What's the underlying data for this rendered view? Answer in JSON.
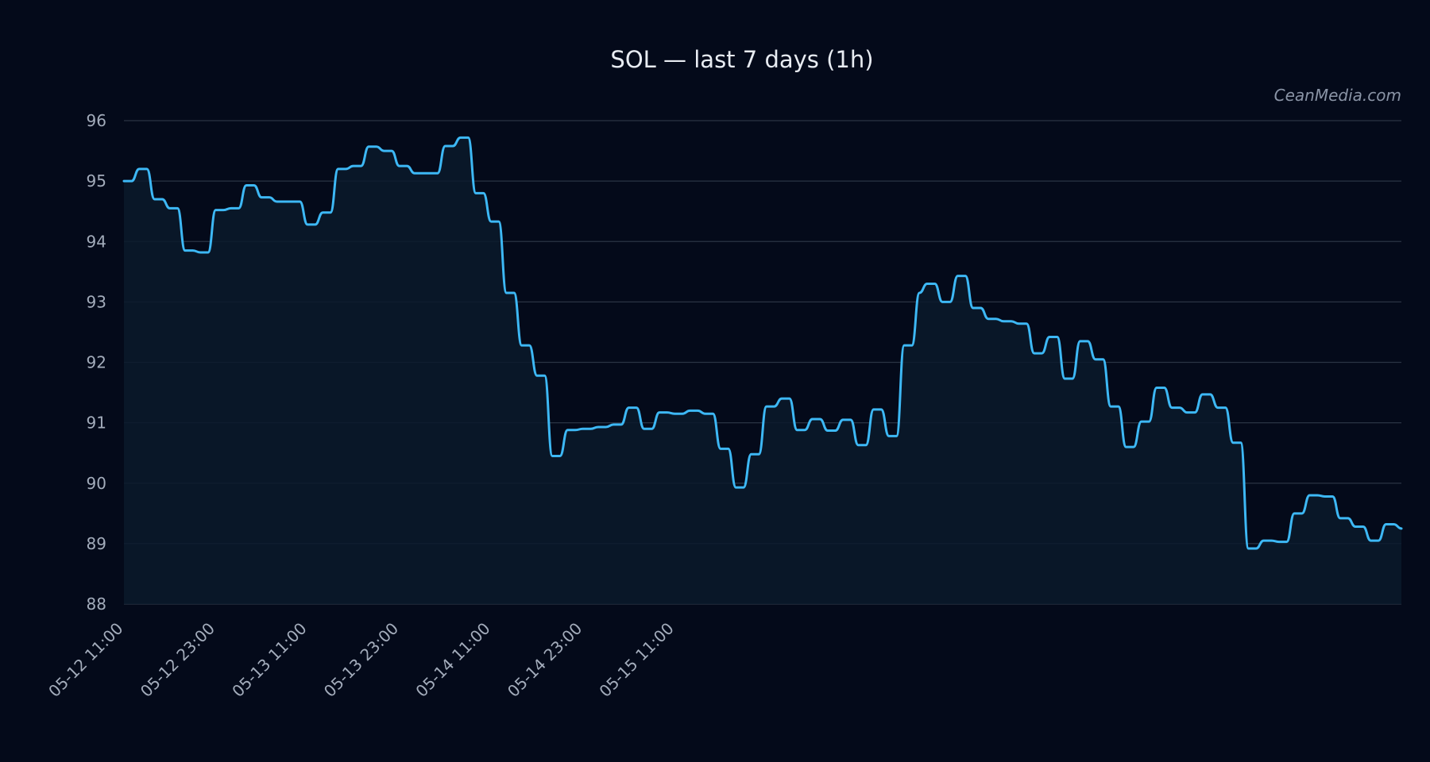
{
  "watermark": "CeanMedia.com",
  "colors": {
    "background": "#040a1a",
    "line": "#3db8f5",
    "area_fill": "#0b1a2c",
    "grid": "#2a3444",
    "text": "#a3acbb",
    "title": "#e8ecf2"
  },
  "chart_data": {
    "type": "line",
    "title": "SOL — last 7 days (1h)",
    "xlabel": "",
    "ylabel": "",
    "ylim": [
      88,
      96
    ],
    "yticks": [
      "88",
      "89",
      "90",
      "91",
      "92",
      "93",
      "94",
      "95",
      "96"
    ],
    "x_start": "05-12 11:00",
    "x_interval": "1h",
    "xticks": [
      "05-12 11:00",
      "05-12 23:00",
      "05-13 11:00",
      "05-13 23:00",
      "05-14 11:00",
      "05-14 23:00",
      "05-15 11:00"
    ],
    "grid": true,
    "area_fill": true,
    "series": [
      {
        "values": [
          95.0,
          95.0,
          95.2,
          95.2,
          94.7,
          94.7,
          94.55,
          94.55,
          93.85,
          93.85,
          93.82,
          93.82,
          94.52,
          94.52,
          94.55,
          94.55,
          94.93,
          94.93,
          94.73,
          94.73,
          94.66,
          94.66,
          94.66,
          94.66,
          94.28,
          94.28,
          94.48,
          94.48,
          95.2,
          95.2,
          95.25,
          95.25,
          95.57,
          95.57,
          95.5,
          95.5,
          95.25,
          95.25,
          95.13,
          95.13,
          95.13,
          95.13,
          95.58,
          95.58,
          95.72,
          95.72,
          94.8,
          94.8,
          94.33,
          94.33,
          93.15,
          93.15,
          92.28,
          92.28,
          91.78,
          91.78,
          90.45,
          90.45,
          90.88,
          90.88,
          90.9,
          90.9,
          90.93,
          90.93,
          90.97,
          90.97,
          91.25,
          91.25,
          90.9,
          90.9,
          91.17,
          91.17,
          91.15,
          91.15,
          91.2,
          91.2,
          91.15,
          91.15,
          90.57,
          90.57,
          89.93,
          89.93,
          90.48,
          90.48,
          91.27,
          91.27,
          91.4,
          91.4,
          90.88,
          90.88,
          91.06,
          91.06,
          90.87,
          90.87,
          91.05,
          91.05,
          90.63,
          90.63,
          91.22,
          91.22,
          90.78,
          90.78,
          92.28,
          92.28,
          93.15,
          93.3,
          93.3,
          93.0,
          93.0,
          93.43,
          93.43,
          92.9,
          92.9,
          92.72,
          92.72,
          92.68,
          92.68,
          92.64,
          92.64,
          92.15,
          92.15,
          92.42,
          92.42,
          91.73,
          91.73,
          92.35,
          92.35,
          92.05,
          92.05,
          91.27,
          91.27,
          90.6,
          90.6,
          91.02,
          91.02,
          91.58,
          91.58,
          91.25,
          91.25,
          91.17,
          91.17,
          91.47,
          91.47,
          91.25,
          91.25,
          90.67,
          90.67,
          88.92,
          88.92,
          89.05,
          89.05,
          89.03,
          89.03,
          89.5,
          89.5,
          89.8,
          89.8,
          89.78,
          89.78,
          89.42,
          89.42,
          89.28,
          89.28,
          89.05,
          89.05,
          89.32,
          89.32,
          89.25
        ]
      }
    ]
  }
}
